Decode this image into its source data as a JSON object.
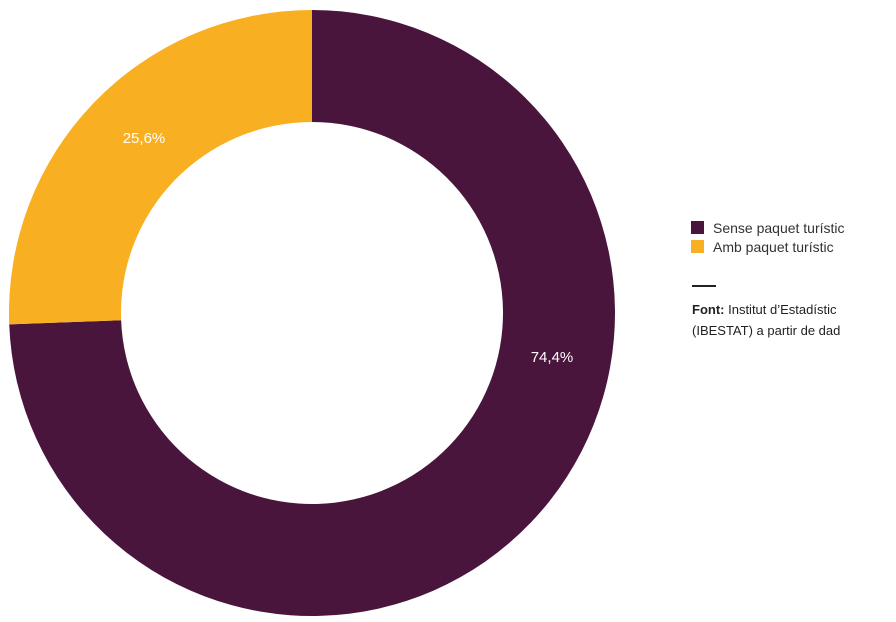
{
  "chart_data": {
    "type": "pie",
    "categories": [
      "Sense paquet turístic",
      "Amb paquet turístic"
    ],
    "values": [
      74.4,
      25.6
    ],
    "labels": [
      "74,4%",
      "25,6%"
    ],
    "colors": [
      "#4a153c",
      "#f8b022"
    ],
    "title": "",
    "donut": true,
    "legend_position": "right"
  },
  "legend": {
    "items": [
      {
        "label": "Sense paquet turístic",
        "color": "#4a153c"
      },
      {
        "label": "Amb paquet turístic",
        "color": "#f8b022"
      }
    ]
  },
  "source": {
    "prefix": "Font:",
    "line1_rest": " Institut d’Estadístic",
    "line2": "(IBESTAT) a partir de dad"
  }
}
